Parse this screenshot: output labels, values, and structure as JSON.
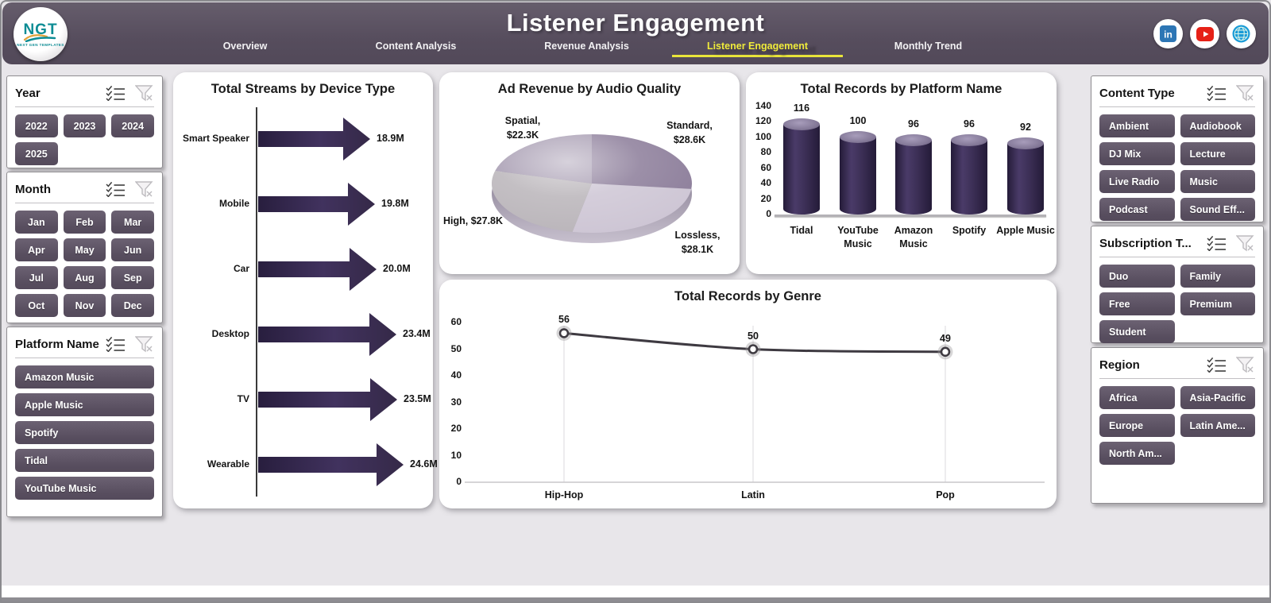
{
  "header": {
    "title": "Listener Engagement",
    "logo": {
      "text": "NGT",
      "subtext": "NEXT GEN TEMPLATES"
    },
    "nav": [
      {
        "label": "Overview",
        "active": false
      },
      {
        "label": "Content Analysis",
        "active": false
      },
      {
        "label": "Revenue Analysis",
        "active": false
      },
      {
        "label": "Listener Engagement",
        "active": true
      },
      {
        "label": "Monthly Trend",
        "active": false
      }
    ],
    "social": [
      {
        "name": "linkedin",
        "color": "#2d76b5"
      },
      {
        "name": "youtube",
        "color": "#e62117"
      },
      {
        "name": "website",
        "color": "#1a9bd7"
      }
    ],
    "active_tab": "Listener Engagement",
    "accent_yellow": "#efeb3b",
    "header_bg": "#5a5162"
  },
  "slicers": {
    "left": [
      {
        "title": "Year",
        "columns": 3,
        "options": [
          "2022",
          "2023",
          "2024",
          "2025"
        ]
      },
      {
        "title": "Month",
        "columns": 3,
        "options": [
          "Jan",
          "Feb",
          "Mar",
          "Apr",
          "May",
          "Jun",
          "Jul",
          "Aug",
          "Sep",
          "Oct",
          "Nov",
          "Dec"
        ]
      },
      {
        "title": "Platform Name",
        "columns": 1,
        "options": [
          "Amazon Music",
          "Apple Music",
          "Spotify",
          "Tidal",
          "YouTube Music"
        ]
      }
    ],
    "right": [
      {
        "title": "Content Type",
        "columns": 2,
        "options": [
          "Ambient",
          "Audiobook",
          "DJ Mix",
          "Lecture",
          "Live Radio",
          "Music",
          "Podcast",
          "Sound Eff..."
        ]
      },
      {
        "title": "Subscription T...",
        "columns": 2,
        "options": [
          "Duo",
          "Family",
          "Free",
          "Premium",
          "Student"
        ]
      },
      {
        "title": "Region",
        "columns": 2,
        "options": [
          "Africa",
          "Asia-Pacific",
          "Europe",
          "Latin Ame...",
          "North Am..."
        ]
      }
    ],
    "button_color": "#5d5364"
  },
  "chart_data": [
    {
      "type": "bar",
      "variant": "horizontal-arrow",
      "title": "Total Streams by Device Type",
      "categories": [
        "Smart Speaker",
        "Mobile",
        "Car",
        "Desktop",
        "TV",
        "Wearable"
      ],
      "values": [
        18.9,
        19.8,
        20.0,
        23.4,
        23.5,
        24.6
      ],
      "labels": [
        "18.9M",
        "19.8M",
        "20.0M",
        "23.4M",
        "23.5M",
        "24.6M"
      ],
      "unit": "M",
      "bar_color": "#382b50",
      "xlim": [
        0,
        24.6
      ]
    },
    {
      "type": "pie",
      "variant": "3d",
      "title": "Ad Revenue by Audio Quality",
      "categories": [
        "Standard",
        "Lossless",
        "High",
        "Spatial"
      ],
      "values": [
        28.6,
        28.1,
        27.8,
        22.3
      ],
      "labels": [
        "Standard, $28.6K",
        "Lossless, $28.1K",
        "High, $27.8K",
        "Spatial, $22.3K"
      ],
      "colors": [
        "#8b7c99",
        "#cdc5d4",
        "#b9b4b9",
        "#a59ab0"
      ],
      "start_angle_deg": 0,
      "callouts": [
        {
          "category": "Spatial",
          "text": "Spatial,\n$22.3K"
        },
        {
          "category": "Standard",
          "text": "Standard,\n$28.6K"
        },
        {
          "category": "High",
          "text": "High, $27.8K"
        },
        {
          "category": "Lossless",
          "text": "Lossless,\n$28.1K"
        }
      ]
    },
    {
      "type": "bar",
      "variant": "cylinder",
      "title": "Total Records by Platform Name",
      "categories": [
        "Tidal",
        "YouTube Music",
        "Amazon Music",
        "Spotify",
        "Apple Music"
      ],
      "values": [
        116,
        100,
        96,
        96,
        92
      ],
      "ylim": [
        0,
        140
      ],
      "ytick_step": 20,
      "bar_color": "#3c2f56"
    },
    {
      "type": "line",
      "title": "Total Records by Genre",
      "categories": [
        "Hip-Hop",
        "Latin",
        "Pop"
      ],
      "values": [
        56,
        50,
        49
      ],
      "ylim": [
        0,
        60
      ],
      "ytick_step": 10,
      "grid": "vertical",
      "line_color": "#3e3a41",
      "marker": "circle-open"
    }
  ]
}
